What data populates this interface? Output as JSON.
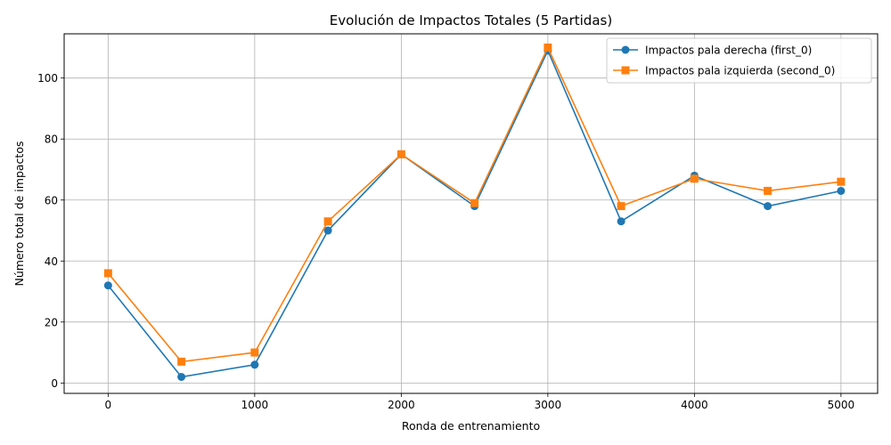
{
  "chart_data": {
    "type": "line",
    "title": "Evolución de Impactos Totales (5 Partidas)",
    "xlabel": "Ronda de entrenamiento",
    "ylabel": "Número total de impactos",
    "x": [
      0,
      500,
      1000,
      1500,
      2000,
      2500,
      3000,
      3500,
      4000,
      4500,
      5000
    ],
    "xlim": [
      -300,
      5250
    ],
    "ylim": [
      -3.4,
      114.5
    ],
    "xticks": [
      0,
      1000,
      2000,
      3000,
      4000,
      5000
    ],
    "yticks": [
      0,
      20,
      40,
      60,
      80,
      100
    ],
    "grid": true,
    "legend_position": "top-right",
    "series": [
      {
        "name": "Impactos pala derecha (first_0)",
        "color": "#1f77b4",
        "marker": "circle",
        "values": [
          32,
          2,
          6,
          50,
          75,
          58,
          109,
          53,
          68,
          58,
          63
        ]
      },
      {
        "name": "Impactos pala izquierda (second_0)",
        "color": "#ff7f0e",
        "marker": "square",
        "values": [
          36,
          7,
          10,
          53,
          75,
          59,
          110,
          58,
          67,
          63,
          66
        ]
      }
    ]
  }
}
